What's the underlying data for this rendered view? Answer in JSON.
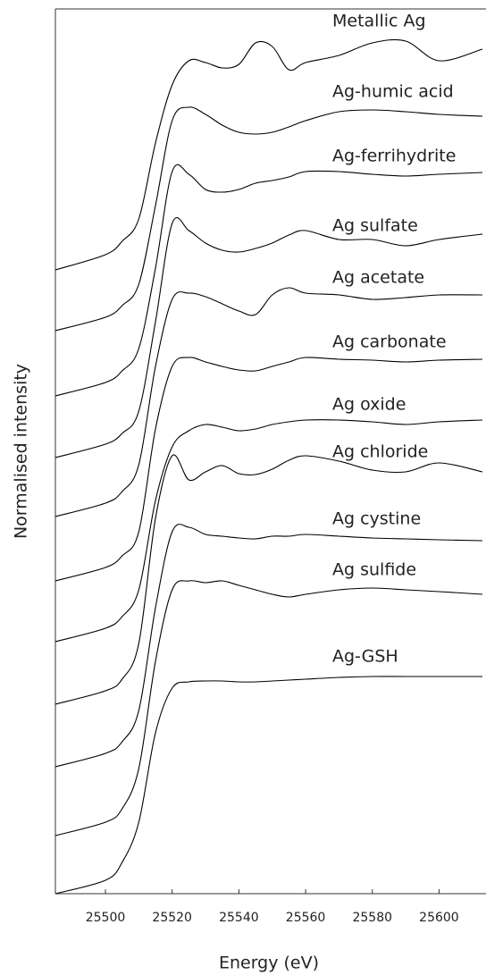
{
  "chart_data": {
    "type": "line",
    "xlabel": "Energy (eV)",
    "ylabel": "Normalised intensity",
    "x": [
      25485,
      25500,
      25505,
      25510,
      25515,
      25520,
      25525,
      25530,
      25535,
      25540,
      25545,
      25550,
      25555,
      25560,
      25570,
      25580,
      25590,
      25600,
      25613
    ],
    "xlim": [
      25485,
      25613
    ],
    "xticks": [
      25500,
      25520,
      25540,
      25560,
      25580,
      25600
    ],
    "ylim": [
      0,
      990
    ],
    "series": [
      {
        "name": "Metallic Ag",
        "color": "#000000",
        "values": [
          698,
          715,
          730,
          755,
          840,
          905,
          932,
          930,
          924,
          928,
          952,
          948,
          922,
          930,
          938,
          952,
          954,
          932,
          945
        ]
      },
      {
        "name": "Ag-humic acid",
        "color": "#000000",
        "values": [
          630,
          645,
          658,
          682,
          770,
          865,
          880,
          872,
          860,
          852,
          850,
          852,
          858,
          865,
          875,
          877,
          875,
          872,
          870
        ]
      },
      {
        "name": "Ag-ferrihydrite",
        "color": "#000000",
        "values": [
          557,
          572,
          585,
          610,
          700,
          808,
          805,
          788,
          785,
          788,
          795,
          798,
          802,
          808,
          808,
          805,
          803,
          805,
          807
        ]
      },
      {
        "name": "Ag sulfate",
        "color": "#000000",
        "values": [
          488,
          503,
          515,
          540,
          640,
          750,
          742,
          728,
          720,
          718,
          722,
          728,
          737,
          742,
          732,
          732,
          725,
          732,
          738
        ]
      },
      {
        "name": "Ag acetate",
        "color": "#000000",
        "values": [
          422,
          437,
          450,
          480,
          590,
          665,
          672,
          668,
          660,
          652,
          648,
          670,
          678,
          672,
          670,
          665,
          667,
          670,
          670
        ]
      },
      {
        "name": "Ag carbonate",
        "color": "#000000",
        "values": [
          350,
          365,
          378,
          405,
          520,
          590,
          600,
          595,
          590,
          586,
          585,
          590,
          595,
          600,
          598,
          597,
          595,
          597,
          598
        ]
      },
      {
        "name": "Ag oxide",
        "color": "#000000",
        "values": [
          282,
          297,
          310,
          340,
          440,
          500,
          518,
          525,
          522,
          518,
          520,
          525,
          528,
          530,
          530,
          528,
          525,
          528,
          530
        ]
      },
      {
        "name": "Ag chloride",
        "color": "#000000",
        "values": [
          212,
          227,
          240,
          280,
          420,
          490,
          463,
          472,
          479,
          470,
          469,
          475,
          485,
          490,
          484,
          474,
          472,
          482,
          472
        ]
      },
      {
        "name": "Ag cystine",
        "color": "#000000",
        "values": [
          142,
          157,
          170,
          205,
          320,
          405,
          410,
          402,
          400,
          398,
          397,
          400,
          400,
          402,
          400,
          398,
          397,
          396,
          395
        ]
      },
      {
        "name": "Ag sulfide",
        "color": "#000000",
        "values": [
          65,
          80,
          95,
          140,
          260,
          340,
          350,
          348,
          350,
          345,
          340,
          335,
          332,
          335,
          340,
          342,
          340,
          338,
          335
        ]
      },
      {
        "name": "Ag-GSH",
        "color": "#000000",
        "values": [
          0,
          15,
          35,
          80,
          180,
          230,
          237,
          238,
          238,
          237,
          237,
          238,
          239,
          240,
          242,
          243,
          243,
          243,
          243
        ]
      }
    ]
  }
}
